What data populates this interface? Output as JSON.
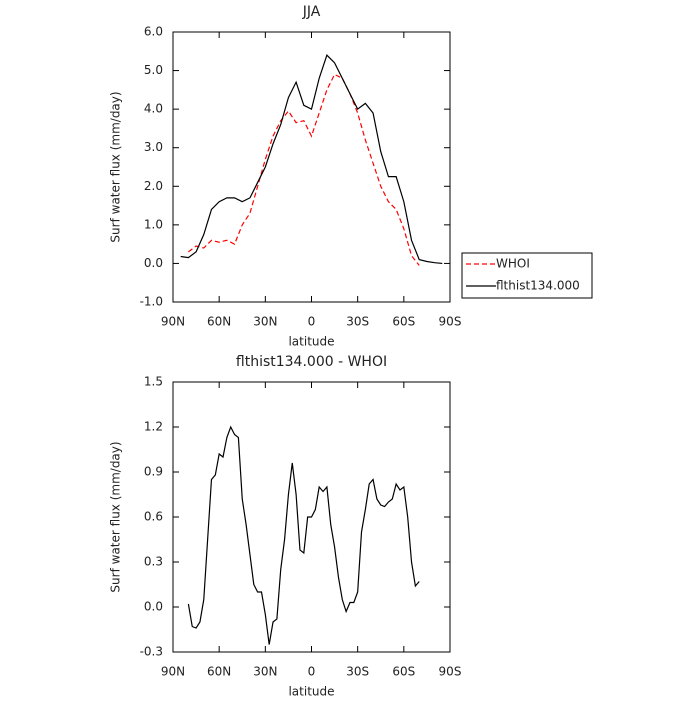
{
  "chart_data": [
    {
      "type": "line",
      "title": "JJA",
      "xlabel": "latitude",
      "ylabel": "Surf water flux (mm/day)",
      "x": [
        85,
        80,
        75,
        70,
        65,
        60,
        55,
        50,
        45,
        40,
        35,
        30,
        25,
        20,
        15,
        10,
        5,
        0,
        -5,
        -10,
        -15,
        -20,
        -25,
        -30,
        -35,
        -40,
        -45,
        -50,
        -55,
        -60,
        -65,
        -70,
        -75,
        -80,
        -85
      ],
      "series": [
        {
          "name": "WHOI",
          "color": "#ff0000",
          "linestyle": "dashed",
          "values": [
            null,
            0.3,
            0.45,
            0.4,
            0.6,
            0.55,
            0.6,
            0.5,
            1.0,
            1.3,
            2.0,
            2.7,
            3.3,
            3.7,
            3.95,
            3.65,
            3.7,
            3.3,
            3.9,
            4.5,
            4.9,
            4.8,
            4.4,
            3.9,
            3.2,
            2.6,
            2.0,
            1.6,
            1.4,
            0.9,
            0.2,
            -0.05,
            null,
            null,
            null
          ]
        },
        {
          "name": "flthist134.000",
          "color": "#000000",
          "linestyle": "solid",
          "values": [
            0.18,
            0.15,
            0.3,
            0.75,
            1.4,
            1.6,
            1.7,
            1.7,
            1.6,
            1.7,
            2.1,
            2.5,
            3.1,
            3.6,
            4.3,
            4.7,
            4.1,
            4.0,
            4.8,
            5.4,
            5.2,
            4.8,
            4.4,
            4.0,
            4.15,
            3.9,
            2.9,
            2.25,
            2.25,
            1.6,
            0.6,
            0.1,
            0.05,
            0.02,
            0.0
          ]
        }
      ],
      "xlim": [
        90,
        -90
      ],
      "xticks": [
        {
          "value": 90,
          "label": "90N"
        },
        {
          "value": 60,
          "label": "60N"
        },
        {
          "value": 30,
          "label": "30N"
        },
        0,
        {
          "value": -30,
          "label": "30S"
        },
        {
          "value": -60,
          "label": "60S"
        },
        {
          "value": -90,
          "label": "90S"
        }
      ],
      "ylim": [
        -1,
        6
      ],
      "yticks": [
        {
          "value": -1,
          "label": "-1.0"
        },
        {
          "value": 0,
          "label": "0.0"
        },
        {
          "value": 1,
          "label": "1.0"
        },
        {
          "value": 2,
          "label": "2.0"
        },
        {
          "value": 3,
          "label": "3.0"
        },
        {
          "value": 4,
          "label": "4.0"
        },
        {
          "value": 5,
          "label": "5.0"
        },
        {
          "value": 6,
          "label": "6.0"
        }
      ],
      "legend": "outside-right"
    },
    {
      "type": "line",
      "title": "flthist134.000 - WHOI",
      "xlabel": "latitude",
      "ylabel": "Surf water flux (mm/day)",
      "x": [
        80,
        77.5,
        75,
        72.5,
        70,
        67.5,
        65,
        62.5,
        60,
        57.5,
        55,
        52.5,
        50,
        47.5,
        45,
        42.5,
        40,
        37.5,
        35,
        32.5,
        30,
        27.5,
        25,
        22.5,
        20,
        17.5,
        15,
        12.5,
        10,
        7.5,
        5,
        2.5,
        0,
        -2.5,
        -5,
        -7.5,
        -10,
        -12.5,
        -15,
        -17.5,
        -20,
        -22.5,
        -25,
        -27.5,
        -30,
        -32.5,
        -35,
        -37.5,
        -40,
        -42.5,
        -45,
        -47.5,
        -50,
        -52.5,
        -55,
        -57.5,
        -60,
        -62.5,
        -65,
        -67.5,
        -70
      ],
      "values": [
        0.02,
        -0.13,
        -0.14,
        -0.1,
        0.05,
        0.45,
        0.85,
        0.88,
        1.02,
        1.0,
        1.13,
        1.2,
        1.15,
        1.13,
        0.72,
        0.55,
        0.35,
        0.15,
        0.1,
        0.1,
        -0.05,
        -0.25,
        -0.1,
        -0.08,
        0.25,
        0.45,
        0.75,
        0.96,
        0.75,
        0.38,
        0.36,
        0.6,
        0.6,
        0.65,
        0.8,
        0.77,
        0.8,
        0.55,
        0.4,
        0.2,
        0.05,
        -0.03,
        0.03,
        0.03,
        0.1,
        0.5,
        0.65,
        0.82,
        0.85,
        0.72,
        0.68,
        0.67,
        0.7,
        0.72,
        0.82,
        0.78,
        0.8,
        0.6,
        0.3,
        0.14,
        0.17
      ],
      "color": "#000000",
      "xlim": [
        90,
        -90
      ],
      "xticks": [
        {
          "value": 90,
          "label": "90N"
        },
        {
          "value": 60,
          "label": "60N"
        },
        {
          "value": 30,
          "label": "30N"
        },
        0,
        {
          "value": -30,
          "label": "30S"
        },
        {
          "value": -60,
          "label": "60S"
        },
        {
          "value": -90,
          "label": "90S"
        }
      ],
      "ylim": [
        -0.3,
        1.5
      ],
      "yticks": [
        -0.3,
        {
          "value": 0,
          "label": "0.0"
        },
        0.3,
        0.6,
        0.9,
        1.2,
        1.5
      ]
    }
  ]
}
